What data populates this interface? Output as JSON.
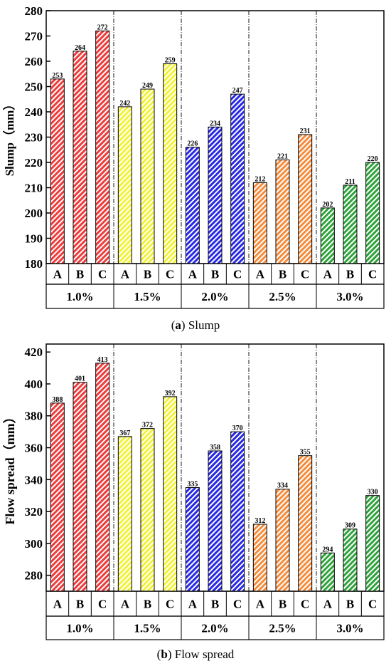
{
  "colors": {
    "1.0%": "#ee3b3b",
    "1.5%": "#f2f23a",
    "2.0%": "#2828e6",
    "2.5%": "#f58c3c",
    "3.0%": "#2fa23c"
  },
  "chart_data": [
    {
      "type": "bar",
      "pattern": "diagonal-hatch",
      "groups": [
        "1.0%",
        "1.5%",
        "2.0%",
        "2.5%",
        "3.0%"
      ],
      "categories": [
        "A",
        "B",
        "C"
      ],
      "values": [
        [
          253,
          264,
          272
        ],
        [
          242,
          249,
          259
        ],
        [
          226,
          234,
          247
        ],
        [
          212,
          221,
          231
        ],
        [
          202,
          211,
          220
        ]
      ],
      "xlabel": "",
      "ylabel": "Slump（mm）",
      "ylim": [
        180,
        280
      ],
      "yticks": [
        180,
        190,
        200,
        210,
        220,
        230,
        240,
        250,
        260,
        270,
        280
      ],
      "grid": false,
      "group_separators": "dash-dot vertical lines",
      "caption": {
        "letter": "a",
        "open": "(",
        "close": ")",
        "text": " Slump"
      }
    },
    {
      "type": "bar",
      "pattern": "diagonal-hatch",
      "groups": [
        "1.0%",
        "1.5%",
        "2.0%",
        "2.5%",
        "3.0%"
      ],
      "categories": [
        "A",
        "B",
        "C"
      ],
      "values": [
        [
          388,
          401,
          413
        ],
        [
          367,
          372,
          392
        ],
        [
          335,
          358,
          370
        ],
        [
          312,
          334,
          355
        ],
        [
          294,
          309,
          330
        ]
      ],
      "xlabel": "",
      "ylabel": "Flow spread（mm）",
      "ylim": [
        270,
        425
      ],
      "yticks": [
        280,
        300,
        320,
        340,
        360,
        380,
        400,
        420
      ],
      "grid": false,
      "group_separators": "dash-dot vertical lines",
      "caption": {
        "letter": "b",
        "open": "(",
        "close": ")",
        "text": " Flow spread"
      }
    }
  ]
}
